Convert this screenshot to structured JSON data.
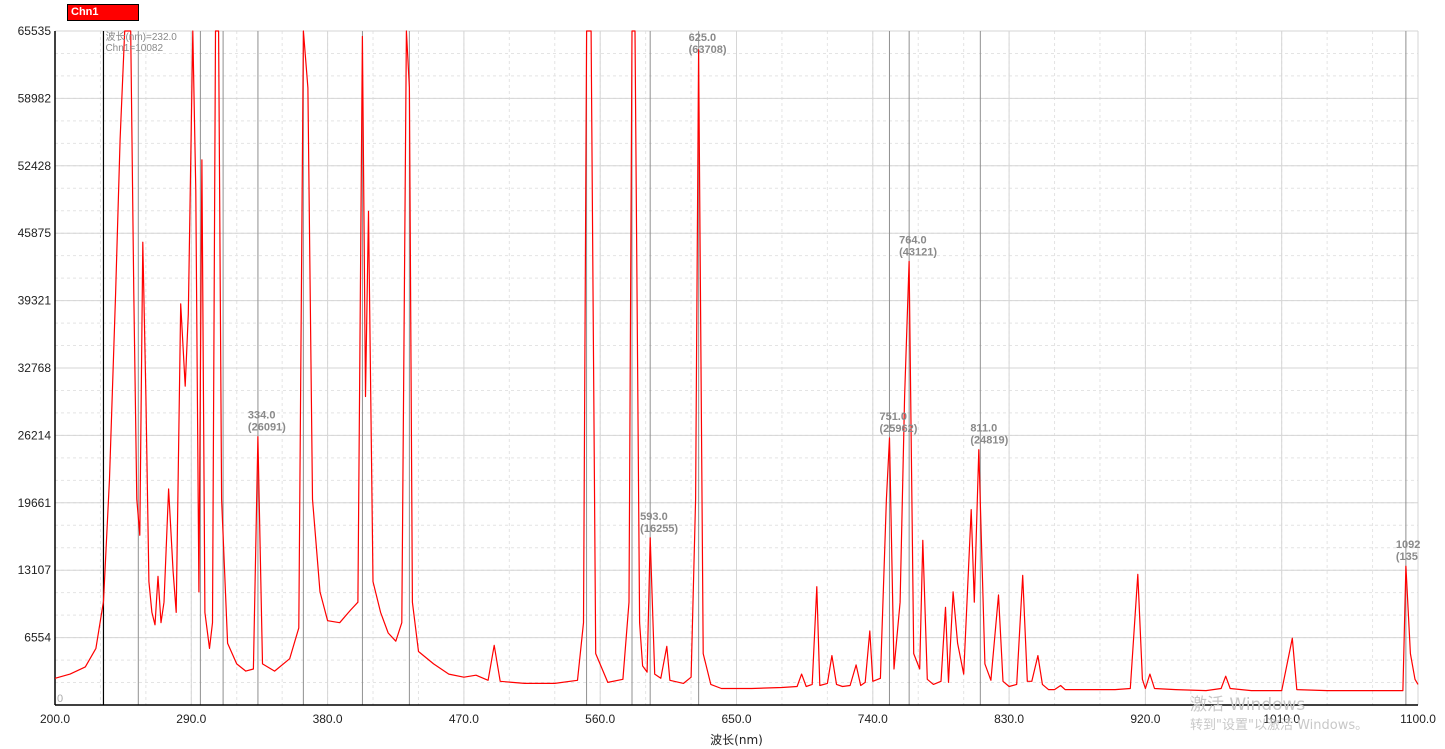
{
  "legend": {
    "label": "Chn1",
    "color": "#ff0000"
  },
  "watermark": {
    "line1": "激活 Windows",
    "line2": "转到\"设置\"以激活 Windows。"
  },
  "chart_data": {
    "type": "line",
    "xlabel": "波长(nm)",
    "ylabel": "",
    "xlim": [
      200,
      1100
    ],
    "ylim": [
      0,
      65535
    ],
    "x_ticks": [
      "200.0",
      "290.0",
      "380.0",
      "470.0",
      "560.0",
      "650.0",
      "740.0",
      "830.0",
      "920.0",
      "1010.0",
      "1100.0"
    ],
    "y_ticks": [
      "0",
      "6554",
      "13107",
      "19661",
      "26214",
      "32768",
      "39321",
      "45875",
      "52428",
      "58982",
      "65535"
    ],
    "grid": true,
    "series": [
      {
        "name": "Chn1",
        "color": "#ff0000",
        "points": [
          [
            200,
            2600
          ],
          [
            210,
            3000
          ],
          [
            220,
            3700
          ],
          [
            227,
            5500
          ],
          [
            232,
            10082
          ],
          [
            236,
            22000
          ],
          [
            240,
            40000
          ],
          [
            243,
            55000
          ],
          [
            246,
            65535
          ],
          [
            250,
            65535
          ],
          [
            252,
            40000
          ],
          [
            254,
            20000
          ],
          [
            256,
            16500
          ],
          [
            258,
            45000
          ],
          [
            260,
            30000
          ],
          [
            262,
            12000
          ],
          [
            264,
            9000
          ],
          [
            266,
            7800
          ],
          [
            268,
            12500
          ],
          [
            270,
            8000
          ],
          [
            272,
            10000
          ],
          [
            275,
            21000
          ],
          [
            278,
            13000
          ],
          [
            280,
            9000
          ],
          [
            283,
            39000
          ],
          [
            286,
            31000
          ],
          [
            288,
            38000
          ],
          [
            291,
            65535
          ],
          [
            293,
            50000
          ],
          [
            295,
            11000
          ],
          [
            297,
            53000
          ],
          [
            299,
            9000
          ],
          [
            302,
            5500
          ],
          [
            304,
            8000
          ],
          [
            306,
            65535
          ],
          [
            308,
            65535
          ],
          [
            310,
            20000
          ],
          [
            314,
            6000
          ],
          [
            320,
            4000
          ],
          [
            326,
            3300
          ],
          [
            331,
            3500
          ],
          [
            334,
            26091
          ],
          [
            337,
            4000
          ],
          [
            345,
            3300
          ],
          [
            355,
            4500
          ],
          [
            361,
            7500
          ],
          [
            364,
            65535
          ],
          [
            367,
            60000
          ],
          [
            370,
            20000
          ],
          [
            375,
            11000
          ],
          [
            380,
            8200
          ],
          [
            388,
            8000
          ],
          [
            395,
            9200
          ],
          [
            400,
            10000
          ],
          [
            403,
            65000
          ],
          [
            405,
            30000
          ],
          [
            407,
            48000
          ],
          [
            410,
            12000
          ],
          [
            415,
            9000
          ],
          [
            420,
            7000
          ],
          [
            425,
            6200
          ],
          [
            429,
            8000
          ],
          [
            432,
            65535
          ],
          [
            434,
            60000
          ],
          [
            436,
            10000
          ],
          [
            440,
            5200
          ],
          [
            450,
            4000
          ],
          [
            460,
            3000
          ],
          [
            470,
            2700
          ],
          [
            478,
            2900
          ],
          [
            486,
            2400
          ],
          [
            490,
            5800
          ],
          [
            494,
            2300
          ],
          [
            510,
            2100
          ],
          [
            530,
            2100
          ],
          [
            545,
            2400
          ],
          [
            549,
            8000
          ],
          [
            551,
            65535
          ],
          [
            554,
            65535
          ],
          [
            557,
            5000
          ],
          [
            565,
            2200
          ],
          [
            575,
            2500
          ],
          [
            579,
            10000
          ],
          [
            581,
            65535
          ],
          [
            583,
            65535
          ],
          [
            586,
            8000
          ],
          [
            588,
            3800
          ],
          [
            591,
            3200
          ],
          [
            593,
            16255
          ],
          [
            596,
            3000
          ],
          [
            600,
            2600
          ],
          [
            604,
            5700
          ],
          [
            606,
            2400
          ],
          [
            615,
            2100
          ],
          [
            620,
            2700
          ],
          [
            623,
            20000
          ],
          [
            625,
            63708
          ],
          [
            628,
            5000
          ],
          [
            633,
            2000
          ],
          [
            640,
            1600
          ],
          [
            660,
            1600
          ],
          [
            680,
            1700
          ],
          [
            690,
            1800
          ],
          [
            693,
            3000
          ],
          [
            696,
            1800
          ],
          [
            700,
            2000
          ],
          [
            703,
            11500
          ],
          [
            705,
            1900
          ],
          [
            710,
            2100
          ],
          [
            713,
            4800
          ],
          [
            716,
            2000
          ],
          [
            720,
            1800
          ],
          [
            725,
            1900
          ],
          [
            729,
            3900
          ],
          [
            732,
            1900
          ],
          [
            735,
            2200
          ],
          [
            738,
            7200
          ],
          [
            740,
            2300
          ],
          [
            745,
            2600
          ],
          [
            749,
            20000
          ],
          [
            751,
            25962
          ],
          [
            754,
            3500
          ],
          [
            758,
            10000
          ],
          [
            761,
            30000
          ],
          [
            764,
            43121
          ],
          [
            767,
            5000
          ],
          [
            771,
            3500
          ],
          [
            773,
            16000
          ],
          [
            776,
            2500
          ],
          [
            780,
            2000
          ],
          [
            785,
            2300
          ],
          [
            788,
            9500
          ],
          [
            790,
            2200
          ],
          [
            793,
            11000
          ],
          [
            796,
            6000
          ],
          [
            800,
            3000
          ],
          [
            805,
            19000
          ],
          [
            807,
            10000
          ],
          [
            810,
            24819
          ],
          [
            814,
            4000
          ],
          [
            818,
            2400
          ],
          [
            823,
            10700
          ],
          [
            826,
            2300
          ],
          [
            830,
            1800
          ],
          [
            835,
            2000
          ],
          [
            839,
            12600
          ],
          [
            842,
            2300
          ],
          [
            845,
            2300
          ],
          [
            849,
            4800
          ],
          [
            852,
            2000
          ],
          [
            856,
            1500
          ],
          [
            860,
            1500
          ],
          [
            864,
            1900
          ],
          [
            867,
            1500
          ],
          [
            880,
            1500
          ],
          [
            900,
            1500
          ],
          [
            910,
            1600
          ],
          [
            915,
            12700
          ],
          [
            918,
            2500
          ],
          [
            920,
            1600
          ],
          [
            923,
            3000
          ],
          [
            926,
            1600
          ],
          [
            940,
            1500
          ],
          [
            960,
            1400
          ],
          [
            970,
            1600
          ],
          [
            973,
            2800
          ],
          [
            976,
            1600
          ],
          [
            990,
            1400
          ],
          [
            1010,
            1400
          ],
          [
            1017,
            6500
          ],
          [
            1020,
            1500
          ],
          [
            1040,
            1400
          ],
          [
            1070,
            1400
          ],
          [
            1090,
            1400
          ],
          [
            1092,
            13500
          ],
          [
            1095,
            5000
          ],
          [
            1098,
            2500
          ],
          [
            1100,
            2000
          ]
        ]
      }
    ],
    "peak_labels": [
      {
        "x": 232,
        "y": 65535,
        "text1": "波长(nm)=232.0",
        "text2": "Chn1=10082"
      },
      {
        "x": 334,
        "y": 26091,
        "text1": "334.0",
        "text2": "(26091)"
      },
      {
        "x": 593,
        "y": 16255,
        "text1": "593.0",
        "text2": "(16255)"
      },
      {
        "x": 625,
        "y": 63708,
        "text1": "625.0",
        "text2": "(63708)"
      },
      {
        "x": 751,
        "y": 25962,
        "text1": "751.0",
        "text2": "(25962)"
      },
      {
        "x": 764,
        "y": 43121,
        "text1": "764.0",
        "text2": "(43121)"
      },
      {
        "x": 811,
        "y": 24819,
        "text1": "811.0",
        "text2": "(24819)"
      },
      {
        "x": 1092,
        "y": 13500,
        "text1": "1092",
        "text2": "(135"
      }
    ],
    "marker_lines": [
      255,
      296,
      311,
      364,
      403,
      434,
      551,
      581
    ]
  }
}
